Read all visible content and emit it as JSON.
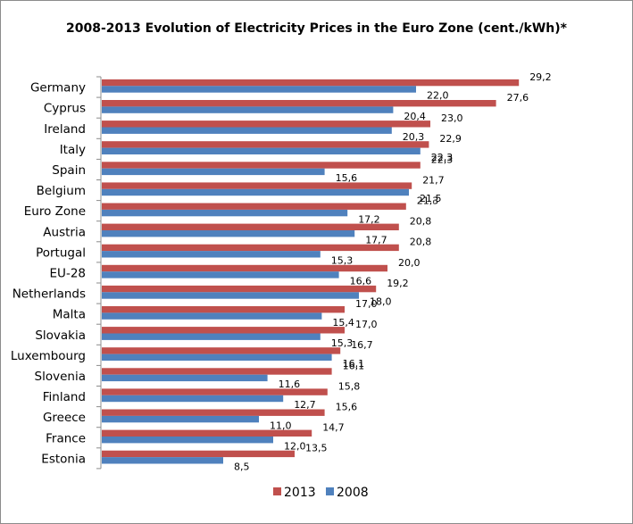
{
  "chart_data": {
    "type": "bar",
    "orientation": "horizontal",
    "title": "2008-2013 Evolution of Electricity Prices in the Euro Zone (cent./kWh)*",
    "xlabel": "",
    "ylabel": "",
    "xlim": [
      0,
      30
    ],
    "grid": false,
    "legend_position": "bottom",
    "categories": [
      "Germany",
      "Cyprus",
      "Ireland",
      "Italy",
      "Spain",
      "Belgium",
      "Euro Zone",
      "Austria",
      "Portugal",
      "EU-28",
      "Netherlands",
      "Malta",
      "Slovakia",
      "Luxembourg",
      "Slovenia",
      "Finland",
      "Greece",
      "France",
      "Estonia"
    ],
    "series": [
      {
        "name": "2013",
        "color": "#C0504D",
        "values": [
          29.2,
          27.6,
          23.0,
          22.9,
          22.3,
          21.7,
          21.3,
          20.8,
          20.8,
          20.0,
          19.2,
          17.0,
          17.0,
          16.7,
          16.1,
          15.8,
          15.6,
          14.7,
          13.5
        ],
        "labels": [
          "29,2",
          "27,6",
          "23,0",
          "22,9",
          "22,3",
          "21,7",
          "21,3",
          "20,8",
          "20,8",
          "20,0",
          "19,2",
          "17,0",
          "17,0",
          "16,7",
          "16,1",
          "15,8",
          "15,6",
          "14,7",
          "13,5"
        ]
      },
      {
        "name": "2008",
        "color": "#4F81BD",
        "values": [
          22.0,
          20.4,
          20.3,
          22.3,
          15.6,
          21.5,
          17.2,
          17.7,
          15.3,
          16.6,
          18.0,
          15.4,
          15.3,
          16.1,
          11.6,
          12.7,
          11.0,
          12.0,
          8.5
        ],
        "labels": [
          "22,0",
          "20,4",
          "20,3",
          "22,3",
          "15,6",
          "21,5",
          "17,2",
          "17,7",
          "15,3",
          "16,6",
          "18,0",
          "15,4",
          "15,3",
          "16,1",
          "11,6",
          "12,7",
          "11,0",
          "12,0",
          "8,5"
        ]
      }
    ]
  }
}
